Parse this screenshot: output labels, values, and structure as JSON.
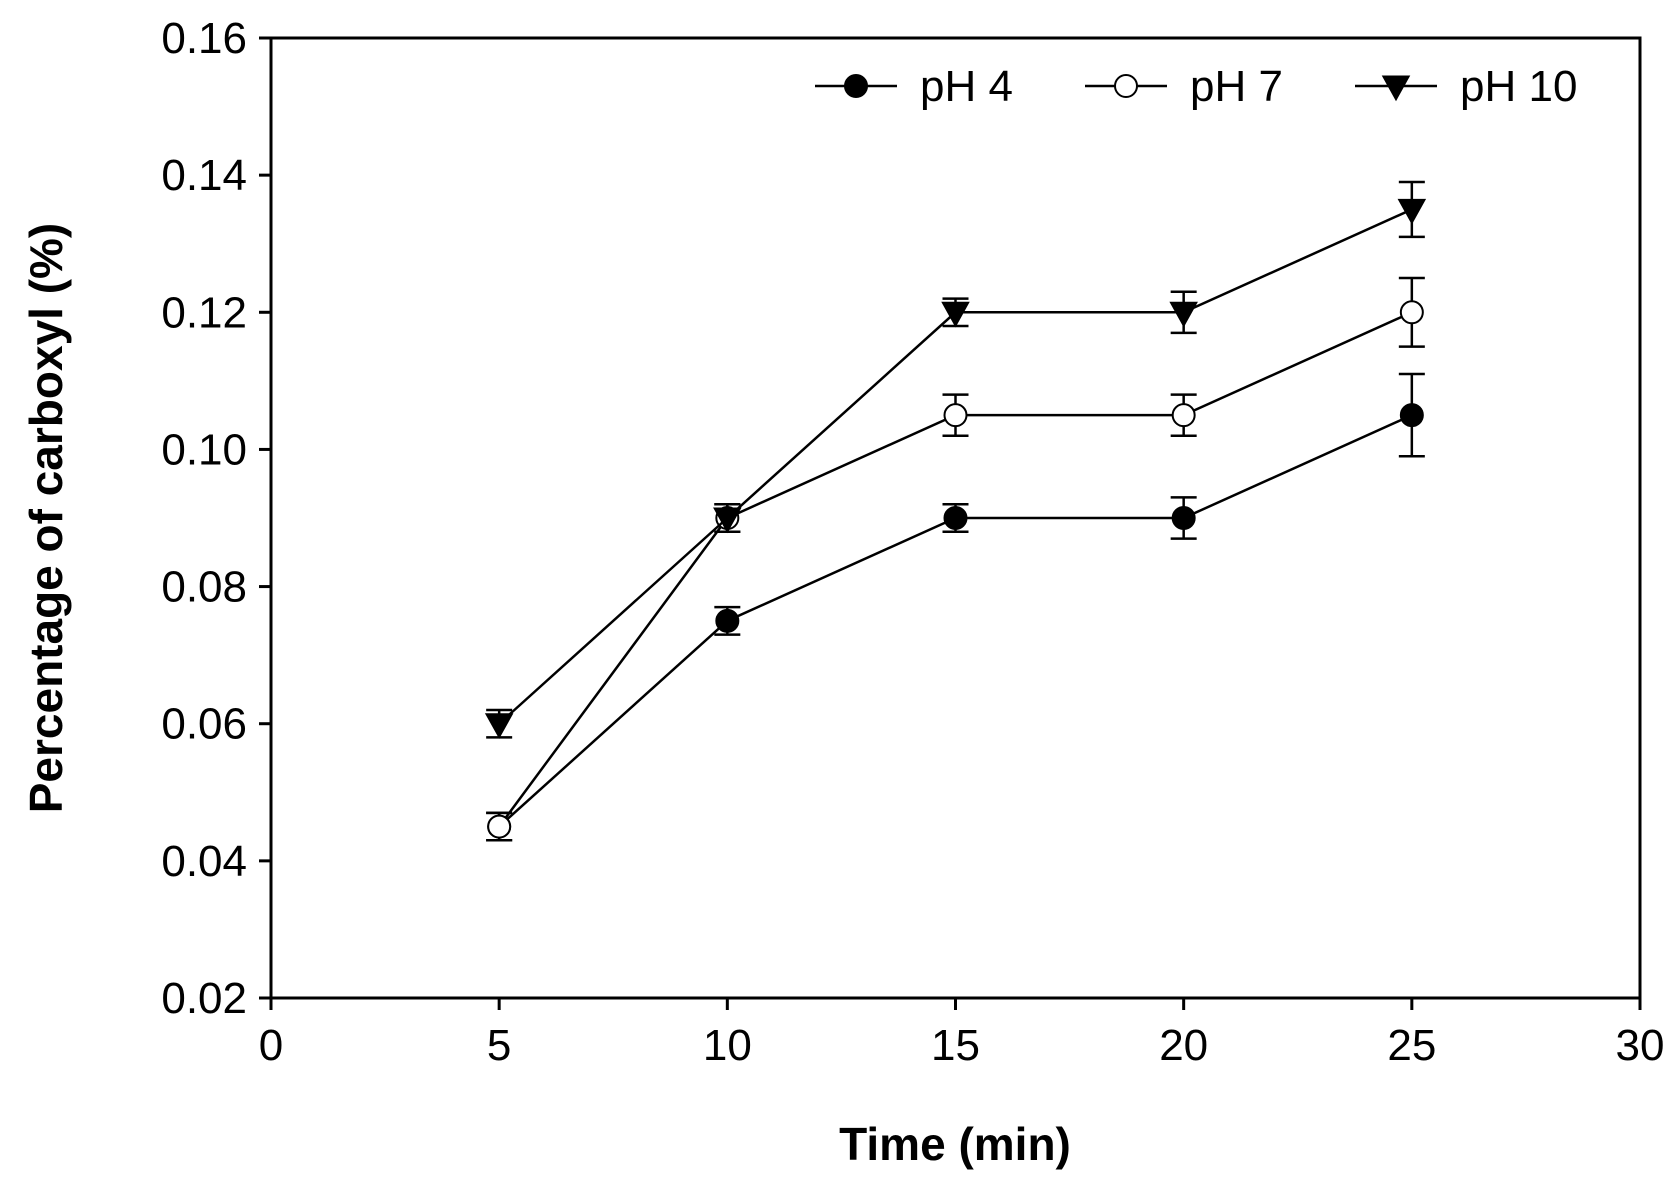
{
  "chart_data": {
    "type": "line",
    "title": "",
    "xlabel": "Time (min)",
    "ylabel": "Percentage of carboxyl (%)",
    "xlim": [
      0,
      30
    ],
    "ylim": [
      0.02,
      0.16
    ],
    "xticks": [
      0,
      5,
      10,
      15,
      20,
      25,
      30
    ],
    "xtick_labels": [
      "0",
      "5",
      "10",
      "15",
      "20",
      "25",
      "30"
    ],
    "yticks": [
      0.02,
      0.04,
      0.06,
      0.08,
      0.1,
      0.12,
      0.14,
      0.16
    ],
    "ytick_labels": [
      "0.02",
      "0.04",
      "0.06",
      "0.08",
      "0.10",
      "0.12",
      "0.14",
      "0.16"
    ],
    "grid": false,
    "legend_position": "top-right",
    "x": [
      5,
      10,
      15,
      20,
      25
    ],
    "series": [
      {
        "name": "pH 4",
        "marker": "filled-circle",
        "values": [
          0.045,
          0.075,
          0.09,
          0.09,
          0.105
        ],
        "errors": [
          0.002,
          0.002,
          0.002,
          0.003,
          0.006
        ]
      },
      {
        "name": "pH 7",
        "marker": "open-circle",
        "values": [
          0.045,
          0.09,
          0.105,
          0.105,
          0.12
        ],
        "errors": [
          0.002,
          0.002,
          0.003,
          0.003,
          0.005
        ]
      },
      {
        "name": "pH 10",
        "marker": "filled-triangle-down",
        "values": [
          0.06,
          0.09,
          0.12,
          0.12,
          0.135
        ],
        "errors": [
          0.002,
          0.002,
          0.002,
          0.003,
          0.004
        ]
      }
    ]
  }
}
